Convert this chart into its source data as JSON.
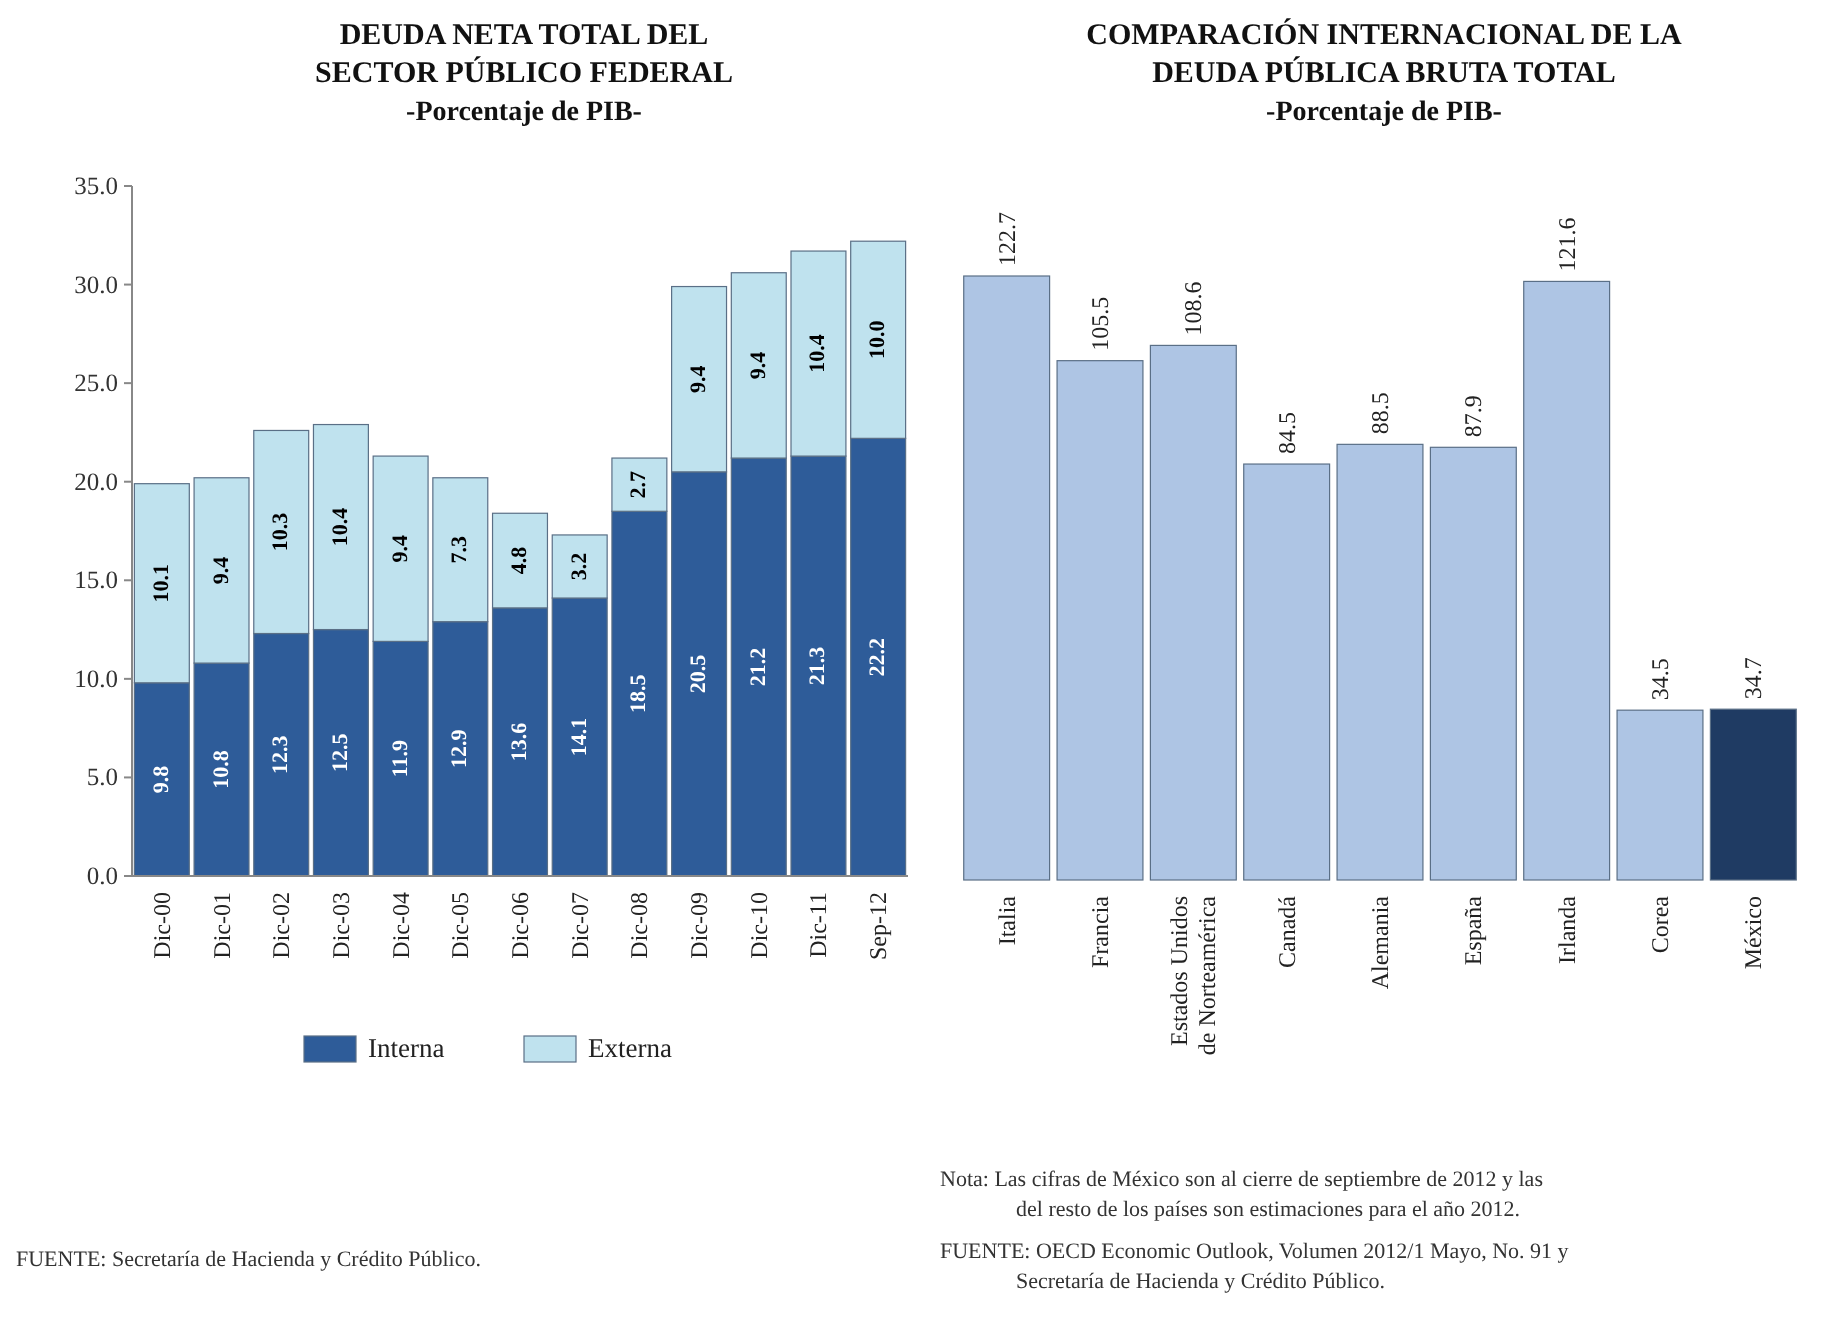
{
  "chart_data": [
    {
      "type": "bar",
      "title": "DEUDA  NETA TOTAL DEL SECTOR PÚBLICO FEDERAL",
      "subtitle": "-Porcentaje de PIB-",
      "categories": [
        "Dic-00",
        "Dic-01",
        "Dic-02",
        "Dic-03",
        "Dic-04",
        "Dic-05",
        "Dic-06",
        "Dic-07",
        "Dic-08",
        "Dic-09",
        "Dic-10",
        "Dic-11",
        "Sep-12"
      ],
      "series": [
        {
          "name": "Interna",
          "color": "#2e5c99",
          "values": [
            9.8,
            10.8,
            12.3,
            12.5,
            11.9,
            12.9,
            13.6,
            14.1,
            18.5,
            20.5,
            21.2,
            21.3,
            22.2
          ],
          "value_labels": [
            "9.8",
            "10.8",
            "12.3",
            "12.5",
            "11.9",
            "12.9",
            "13.6",
            "14.1",
            "18.5",
            "20.5",
            "21.2",
            "21.3",
            "22.2"
          ]
        },
        {
          "name": "Externa",
          "color": "#bfe2ee",
          "values": [
            10.1,
            9.4,
            10.3,
            10.4,
            9.4,
            7.3,
            4.8,
            3.2,
            2.7,
            9.4,
            9.4,
            10.4,
            10.0
          ],
          "value_labels": [
            "10.1",
            "9.4",
            "10.3",
            "10.4",
            "9.4",
            "7.3",
            "4.8",
            "3.2",
            "2.7",
            "9.4",
            "9.4",
            "10.4",
            "10.0"
          ]
        }
      ],
      "stacked": true,
      "legend": "bottom",
      "ylim": [
        0,
        35
      ],
      "yticks": [
        {
          "value": 0,
          "label": "0.0"
        },
        {
          "value": 5,
          "label": "5.0"
        },
        {
          "value": 10,
          "label": "10.0"
        },
        {
          "value": 15,
          "label": "15.0"
        },
        {
          "value": 20,
          "label": "20.0"
        },
        {
          "value": 25,
          "label": "25.0"
        },
        {
          "value": 30,
          "label": "30.0"
        },
        {
          "value": 35,
          "label": "35.0"
        }
      ],
      "annotations": [
        "FUENTE:  Secretaría de Hacienda y Crédito Público."
      ]
    },
    {
      "type": "bar",
      "title": "COMPARACIÓN  INTERNACIONAL DE LA DEUDA PÚBLICA BRUTA TOTAL",
      "subtitle": "-Porcentaje de PIB-",
      "categories": [
        "Italia",
        "Francia",
        "Estados Unidos de Norteamérica",
        "Canadá",
        "Alemania",
        "España",
        "Irlanda",
        "Corea",
        "México"
      ],
      "values": [
        122.7,
        105.5,
        108.6,
        84.5,
        88.5,
        87.9,
        121.6,
        34.5,
        34.7
      ],
      "colors": [
        "#aec5e4",
        "#aec5e4",
        "#aec5e4",
        "#aec5e4",
        "#aec5e4",
        "#aec5e4",
        "#aec5e4",
        "#aec5e4",
        "#1f3b63"
      ],
      "data_labels": true,
      "annotations": [
        "Nota:  Las cifras de México son al cierre de septiembre de 2012 y las del resto de los países son estimaciones para el año 2012.",
        "FUENTE:  OECD Economic Outlook, Volumen 2012/1 Mayo, No. 91 y Secretaría de Hacienda  y Crédito Público."
      ]
    }
  ]
}
